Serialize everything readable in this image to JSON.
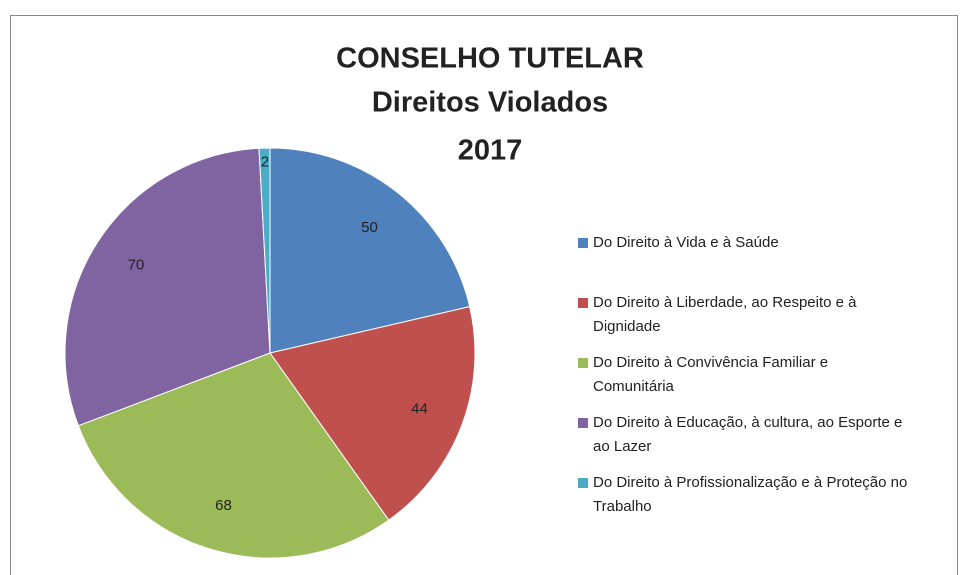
{
  "chart_data": {
    "type": "pie",
    "title": [
      "CONSELHO TUTELAR",
      "Direitos Violados",
      "2017"
    ],
    "categories": [
      "Do Direito à Vida e à Saúde",
      "Do Direito à Liberdade, ao Respeito e à Dignidade",
      "Do Direito à Convivência Familiar e Comunitária",
      "Do Direito à Educação, à cultura, ao Esporte e ao Lazer",
      "Do Direito à Profissionalização e à Proteção no Trabalho"
    ],
    "values": [
      50,
      44,
      68,
      70,
      2
    ],
    "colors": [
      "#4f81bd",
      "#c0504d",
      "#9bbb59",
      "#8064a2",
      "#4bacc6"
    ],
    "legend": "right"
  }
}
